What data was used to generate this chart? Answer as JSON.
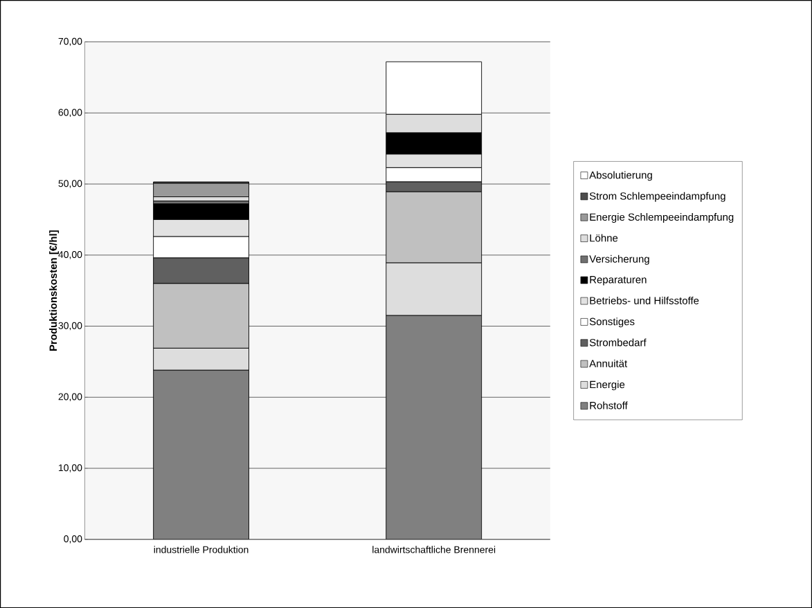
{
  "chart_data": {
    "type": "bar",
    "stacked": true,
    "ylabel": "Produktionskosten [€/hl]",
    "categories": [
      "industrielle Produktion",
      "landwirtschaftliche Brennerei"
    ],
    "series": [
      {
        "name": "Rohstoff",
        "color": "#808080",
        "values": [
          23.8,
          31.5
        ]
      },
      {
        "name": "Energie",
        "color": "#dddddd",
        "values": [
          3.1,
          7.4
        ]
      },
      {
        "name": "Annuität",
        "color": "#c0c0c0",
        "values": [
          9.1,
          10.0
        ]
      },
      {
        "name": "Strombedarf",
        "color": "#606060",
        "values": [
          3.6,
          1.4
        ]
      },
      {
        "name": "Sonstiges",
        "color": "#ffffff",
        "values": [
          3.0,
          2.0
        ]
      },
      {
        "name": "Betriebs- und Hilfsstoffe",
        "color": "#e2e2e2",
        "values": [
          2.4,
          1.9
        ]
      },
      {
        "name": "Reparaturen",
        "color": "#000000",
        "values": [
          2.2,
          3.0
        ]
      },
      {
        "name": "Versicherung",
        "color": "#707070",
        "values": [
          0.4,
          0
        ]
      },
      {
        "name": "Löhne",
        "color": "#dddddd",
        "values": [
          0.6,
          2.6
        ]
      },
      {
        "name": "Energie Schlempeeindampfung",
        "color": "#999999",
        "values": [
          1.9,
          0
        ]
      },
      {
        "name": "Strom Schlempeeindampfung",
        "color": "#4d4d4d",
        "values": [
          0.2,
          0
        ]
      },
      {
        "name": "Absolutierung",
        "color": "#ffffff",
        "values": [
          0,
          7.4
        ]
      }
    ],
    "ylim": [
      0,
      70
    ],
    "yticks": [
      {
        "value": 0,
        "label": "0,00"
      },
      {
        "value": 10,
        "label": "10,00"
      },
      {
        "value": 20,
        "label": "20,00"
      },
      {
        "value": 30,
        "label": "30,00"
      },
      {
        "value": 40,
        "label": "40,00"
      },
      {
        "value": 50,
        "label": "50,00"
      },
      {
        "value": 60,
        "label": "60,00"
      },
      {
        "value": 70,
        "label": "70,00"
      }
    ],
    "grid": "y",
    "legend": "right"
  }
}
